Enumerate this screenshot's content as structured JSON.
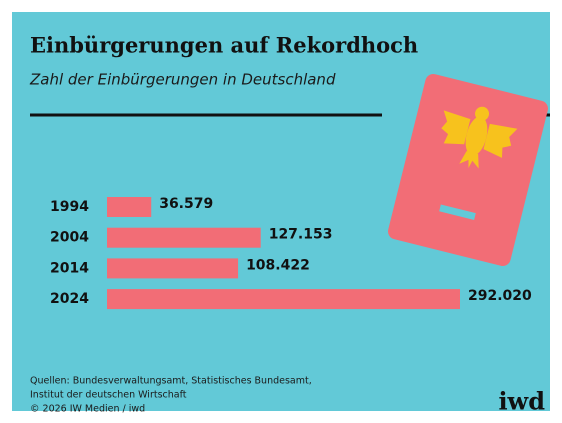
{
  "chart_data": {
    "type": "bar",
    "orientation": "horizontal",
    "title": "Einbürgerungen auf Rekordhoch",
    "subtitle": "Zahl der Einbürgerungen in Deutschland",
    "categories": [
      "1994",
      "2004",
      "2014",
      "2024"
    ],
    "values": [
      36579,
      127153,
      108422,
      292020
    ],
    "value_labels": [
      "36.579",
      "127.153",
      "108.422",
      "292.020"
    ],
    "color": "#f26d76",
    "source": [
      "Quellen: Bundesverwaltungsamt, Statistisches Bundesamt,",
      "Institut der deutschen Wirtschaft",
      "© 2026 IW Medien / iwd"
    ],
    "logo": "iwd"
  }
}
